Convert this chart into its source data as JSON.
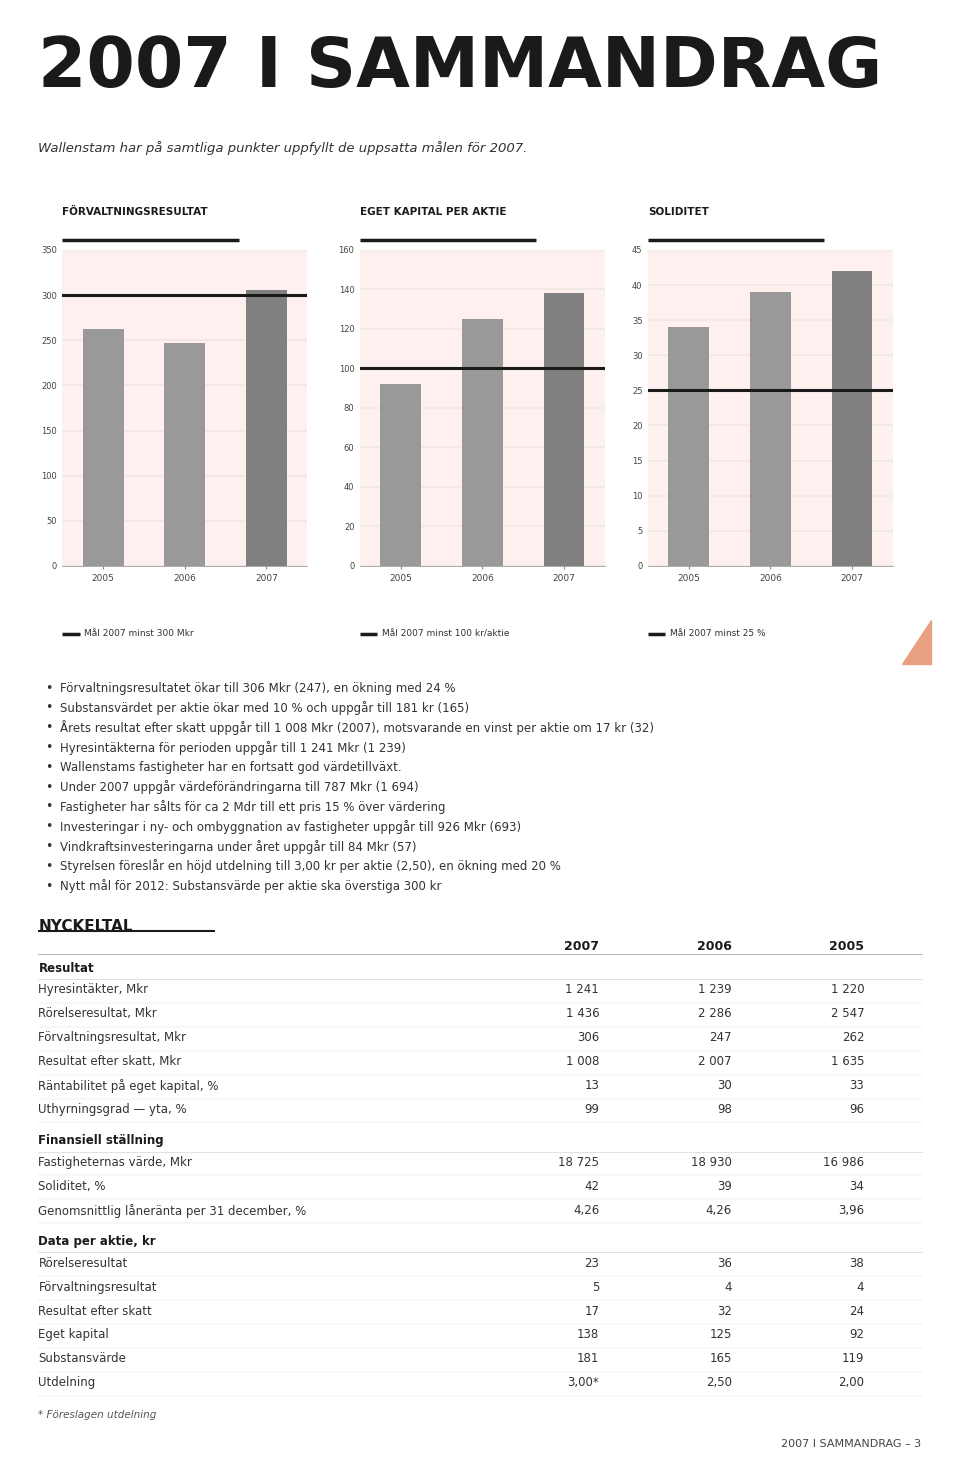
{
  "page_title": "2007 I SAMMANDRAG",
  "subtitle": "Wallenstam har på samtliga punkter uppfyllt de uppsatta målen för 2007.",
  "bg_color": "#ffffff",
  "panel_bg": "#fdf0ee",
  "chart1": {
    "title": "FÖRVALTNINGSRESULTAT",
    "unit": "Mkr",
    "years": [
      "2005",
      "2006",
      "2007"
    ],
    "values": [
      262,
      247,
      306
    ],
    "bar_color": [
      "#999999",
      "#999999",
      "#808080"
    ],
    "target_value": 300,
    "target_label": "Mål 2007 minst 300 Mkr",
    "ylim": [
      0,
      350
    ],
    "yticks": [
      0,
      50,
      100,
      150,
      200,
      250,
      300,
      350
    ]
  },
  "chart2": {
    "title": "EGET KAPITAL PER AKTIE",
    "unit": "Kr",
    "years": [
      "2005",
      "2006",
      "2007"
    ],
    "values": [
      92,
      125,
      138
    ],
    "bar_color": [
      "#999999",
      "#999999",
      "#808080"
    ],
    "target_value": 100,
    "target_label": "Mål 2007 minst 100 kr/aktie",
    "ylim": [
      0,
      160
    ],
    "yticks": [
      0,
      20,
      40,
      60,
      80,
      100,
      120,
      140,
      160
    ]
  },
  "chart3": {
    "title": "SOLIDITET",
    "unit": "%",
    "years": [
      "2005",
      "2006",
      "2007"
    ],
    "values": [
      34,
      39,
      42
    ],
    "bar_color": [
      "#999999",
      "#999999",
      "#808080"
    ],
    "target_value": 25,
    "target_label": "Mål 2007 minst 25 %",
    "ylim": [
      0,
      45
    ],
    "yticks": [
      0,
      5,
      10,
      15,
      20,
      25,
      30,
      35,
      40,
      45
    ]
  },
  "bullet_points": [
    "Förvaltningsresultatet ökar till 306 Mkr (247), en ökning med 24 %",
    "Substansvärdet per aktie ökar med 10 % och uppgår till 181 kr (165)",
    "Årets resultat efter skatt uppgår till 1 008 Mkr (2007), motsvarande en vinst per aktie om 17 kr (32)",
    "Hyresintäkterna för perioden uppgår till 1 241 Mkr (1 239)",
    "Wallenstams fastigheter har en fortsatt god värdetillväxt.",
    "Under 2007 uppgår värdeförändringarna till 787 Mkr (1 694)",
    "Fastigheter har sålts för ca 2 Mdr till ett pris 15 % över värdering",
    "Investeringar i ny- och ombyggnation av fastigheter uppgår till 926 Mkr (693)",
    "Vindkraftsinvesteringarna under året uppgår till 84 Mkr (57)",
    "Styrelsen föreslår en höjd utdelning till 3,00 kr per aktie (2,50), en ökning med 20 %",
    "Nytt mål för 2012: Substansvärde per aktie ska överstiga 300 kr"
  ],
  "nyckeltal_title": "NYCKELTAL",
  "nyckeltal_headers": [
    "",
    "2007",
    "2006",
    "2005"
  ],
  "nyckeltal_sections": [
    {
      "section_title": "Resultat",
      "rows": [
        [
          "Hyresintäkter, Mkr",
          "1 241",
          "1 239",
          "1 220"
        ],
        [
          "Rörelseresultat, Mkr",
          "1 436",
          "2 286",
          "2 547"
        ],
        [
          "Förvaltningsresultat, Mkr",
          "306",
          "247",
          "262"
        ],
        [
          "Resultat efter skatt, Mkr",
          "1 008",
          "2 007",
          "1 635"
        ],
        [
          "Räntabilitet på eget kapital, %",
          "13",
          "30",
          "33"
        ],
        [
          "Uthyrningsgrad — yta, %",
          "99",
          "98",
          "96"
        ]
      ]
    },
    {
      "section_title": "Finansiell ställning",
      "rows": [
        [
          "Fastigheternas värde, Mkr",
          "18 725",
          "18 930",
          "16 986"
        ],
        [
          "Soliditet, %",
          "42",
          "39",
          "34"
        ],
        [
          "Genomsnittlig låneränta per 31 december, %",
          "4,26",
          "4,26",
          "3,96"
        ]
      ]
    },
    {
      "section_title": "Data per aktie, kr",
      "rows": [
        [
          "Rörelseresultat",
          "23",
          "36",
          "38"
        ],
        [
          "Förvaltningsresultat",
          "5",
          "4",
          "4"
        ],
        [
          "Resultat efter skatt",
          "17",
          "32",
          "24"
        ],
        [
          "Eget kapital",
          "138",
          "125",
          "92"
        ],
        [
          "Substansvärde",
          "181",
          "165",
          "119"
        ],
        [
          "Utdelning",
          "3,00*",
          "2,50",
          "2,00"
        ]
      ]
    }
  ],
  "footnote": "* Föreslagen utdelning",
  "page_footer": "2007 I SAMMANDRAG – 3"
}
